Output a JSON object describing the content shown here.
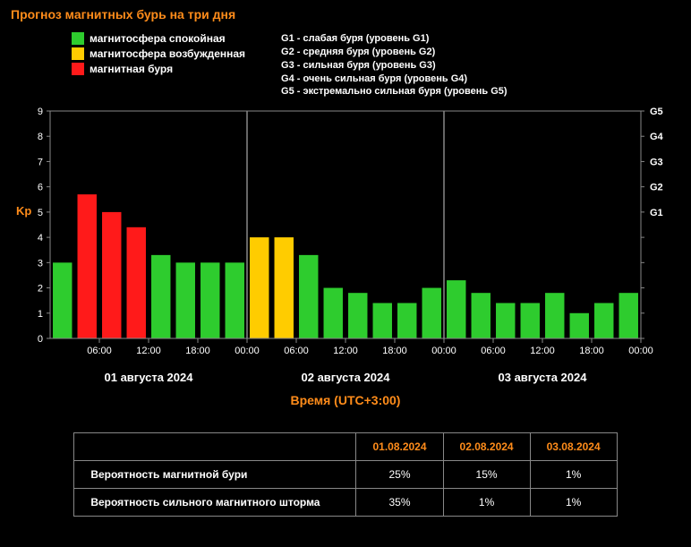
{
  "title": "Прогноз магнитных бурь на три дня",
  "legend": {
    "calm": {
      "label": "магнитосфера спокойная",
      "color": "#2ecc2e"
    },
    "excited": {
      "label": "магнитосфера возбужденная",
      "color": "#ffcc00"
    },
    "storm": {
      "label": "магнитная буря",
      "color": "#ff1a1a"
    }
  },
  "g_scale": [
    "G1 - слабая буря (уровень G1)",
    "G2 - средняя буря (уровень G2)",
    "G3 - сильная буря (уровень G3)",
    "G4 - очень сильная буря (уровень G4)",
    "G5 - экстремально сильная буря (уровень G5)"
  ],
  "chart": {
    "type": "bar",
    "ylabel": "Kp",
    "ylim": [
      0,
      9
    ],
    "ytick_step": 1,
    "right_labels": [
      "G5",
      "G4",
      "G3",
      "G2",
      "G1"
    ],
    "right_positions": [
      9,
      8,
      7,
      6,
      5
    ],
    "background": "#000000",
    "grid_color": "#888888",
    "tick_font_size": 11,
    "bar_width_ratio": 0.78,
    "x_ticks": [
      "06:00",
      "12:00",
      "18:00",
      "00:00",
      "06:00",
      "12:00",
      "18:00",
      "00:00",
      "06:00",
      "12:00",
      "18:00",
      "00:00"
    ],
    "x_tick_every": 2,
    "day_separators": [
      8,
      16
    ],
    "days": [
      "01 августа 2024",
      "02 августа 2024",
      "03 августа 2024"
    ],
    "x_axis_title": "Время (UTC+3:00)",
    "bars": [
      {
        "v": 3.0,
        "c": "calm"
      },
      {
        "v": 5.7,
        "c": "storm"
      },
      {
        "v": 5.0,
        "c": "storm"
      },
      {
        "v": 4.4,
        "c": "storm"
      },
      {
        "v": 3.3,
        "c": "calm"
      },
      {
        "v": 3.0,
        "c": "calm"
      },
      {
        "v": 3.0,
        "c": "calm"
      },
      {
        "v": 3.0,
        "c": "calm"
      },
      {
        "v": 4.0,
        "c": "excited"
      },
      {
        "v": 4.0,
        "c": "excited"
      },
      {
        "v": 3.3,
        "c": "calm"
      },
      {
        "v": 2.0,
        "c": "calm"
      },
      {
        "v": 1.8,
        "c": "calm"
      },
      {
        "v": 1.4,
        "c": "calm"
      },
      {
        "v": 1.4,
        "c": "calm"
      },
      {
        "v": 2.0,
        "c": "calm"
      },
      {
        "v": 2.3,
        "c": "calm"
      },
      {
        "v": 1.8,
        "c": "calm"
      },
      {
        "v": 1.4,
        "c": "calm"
      },
      {
        "v": 1.4,
        "c": "calm"
      },
      {
        "v": 1.8,
        "c": "calm"
      },
      {
        "v": 1.0,
        "c": "calm"
      },
      {
        "v": 1.4,
        "c": "calm"
      },
      {
        "v": 1.8,
        "c": "calm"
      }
    ]
  },
  "table": {
    "header_color": "#ff8c1a",
    "border_color": "#888888",
    "columns": [
      "01.08.2024",
      "02.08.2024",
      "03.08.2024"
    ],
    "rows": [
      {
        "label": "Вероятность магнитной бури",
        "values": [
          "25%",
          "15%",
          "1%"
        ]
      },
      {
        "label": "Вероятность сильного магнитного шторма",
        "values": [
          "35%",
          "1%",
          "1%"
        ]
      }
    ]
  }
}
